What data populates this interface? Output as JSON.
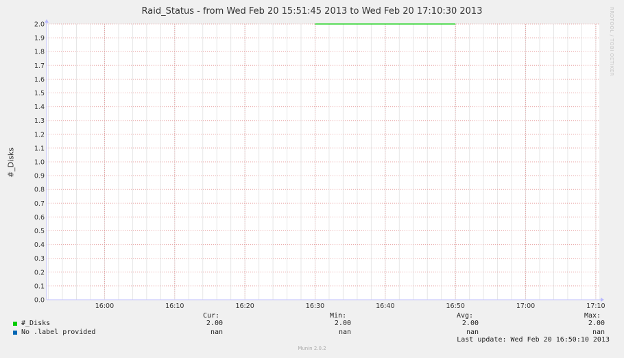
{
  "chart_data": {
    "type": "line",
    "title": "Raid_Status - from Wed Feb 20 15:51:45 2013 to Wed Feb 20 17:10:30 2013",
    "ylabel": "#_Disks",
    "ylim": [
      0,
      2.0
    ],
    "yticks": [
      "0.0",
      "0.1",
      "0.2",
      "0.3",
      "0.4",
      "0.5",
      "0.6",
      "0.7",
      "0.8",
      "0.9",
      "1.0",
      "1.1",
      "1.2",
      "1.3",
      "1.4",
      "1.5",
      "1.6",
      "1.7",
      "1.8",
      "1.9",
      "2.0"
    ],
    "xticks": [
      "16:00",
      "16:10",
      "16:20",
      "16:30",
      "16:40",
      "16:50",
      "17:00",
      "17:10"
    ],
    "x_range": [
      "15:51:45",
      "17:10:30"
    ],
    "grid": true,
    "series": [
      {
        "name": "#_Disks",
        "color": "#00cc00",
        "points": [
          {
            "x": "16:30",
            "y": 2.0
          },
          {
            "x": "16:50",
            "y": 2.0
          }
        ]
      },
      {
        "name": "No .label provided",
        "color": "#0066b3",
        "points": []
      }
    ]
  },
  "legend": {
    "headers": {
      "cur": "Cur:",
      "min": "Min:",
      "avg": "Avg:",
      "max": "Max:"
    },
    "rows": [
      {
        "name": "#_Disks",
        "color": "#00cc00",
        "cur": "2.00",
        "min": "2.00",
        "avg": "2.00",
        "max": "2.00"
      },
      {
        "name": "No .label provided",
        "color": "#0066b3",
        "cur": "nan",
        "min": "nan",
        "avg": "nan",
        "max": "nan"
      }
    ]
  },
  "last_update": "Last update: Wed Feb 20 16:50:10 2013",
  "credit": "RRDTOOL / TOBI OETIKER",
  "footer": "Munin 2.0.2"
}
